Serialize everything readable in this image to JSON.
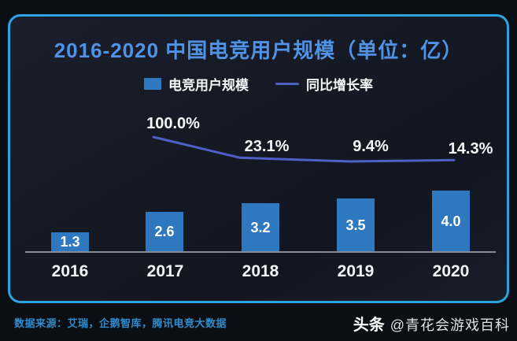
{
  "page": {
    "background": "#0b0e13",
    "panel_border_color": "#2ba3de",
    "panel_background": "#141924"
  },
  "header": {
    "title": "2016-2020 中国电竞用户规模（单位：亿）",
    "title_color": "#4f92e6"
  },
  "legend": {
    "position": "top",
    "items": [
      {
        "label": "电竞用户规模",
        "type": "bar",
        "color": "#2e78c0"
      },
      {
        "label": "同比增长率",
        "type": "line",
        "color": "#4e5fc5"
      }
    ]
  },
  "chart_data": {
    "type": "bar",
    "title": "2016-2020 中国电竞用户规模（单位：亿）",
    "categories": [
      "2016",
      "2017",
      "2018",
      "2019",
      "2020"
    ],
    "series": [
      {
        "name": "电竞用户规模",
        "type": "bar",
        "unit": "亿",
        "color": "#2e78c0",
        "values": [
          1.3,
          2.6,
          3.2,
          3.5,
          4.0
        ]
      },
      {
        "name": "同比增长率",
        "type": "line",
        "unit": "%",
        "color": "#4e5fc5",
        "values": [
          null,
          100.0,
          23.1,
          9.4,
          14.3
        ],
        "labels": [
          "",
          "100.0%",
          "23.1%",
          "9.4%",
          "14.3%"
        ]
      }
    ],
    "value_labels": [
      "1.3",
      "2.6",
      "3.2",
      "3.5",
      "4.0"
    ],
    "ylim": [
      0,
      4.0
    ],
    "grid": false,
    "legend_position": "top",
    "xlabel": "",
    "ylabel": ""
  },
  "footer": {
    "source": "数据来源：艾瑞，企鹅智库，腾讯电竞大数据",
    "watermark_brand": "头条",
    "watermark_account": "@青花会游戏百科"
  }
}
